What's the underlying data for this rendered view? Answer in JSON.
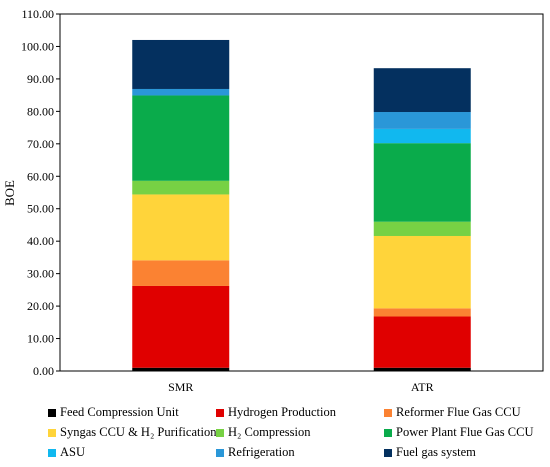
{
  "chart_data": {
    "type": "bar",
    "stacked": true,
    "title": "",
    "xlabel": "",
    "ylabel": "BOE",
    "ylim": [
      0,
      110
    ],
    "yticks": [
      "0.00",
      "10.00",
      "20.00",
      "30.00",
      "40.00",
      "50.00",
      "60.00",
      "70.00",
      "80.00",
      "90.00",
      "100.00",
      "110.00"
    ],
    "categories": [
      "SMR",
      "ATR"
    ],
    "grid": false,
    "legend_position": "bottom",
    "series": [
      {
        "name": "Feed Compression Unit",
        "color": "#000000",
        "values": [
          1.0,
          1.0
        ]
      },
      {
        "name": "Hydrogen Production",
        "color": "#e00000",
        "values": [
          25.2,
          15.8
        ]
      },
      {
        "name": "Reformer Flue Gas CCU",
        "color": "#fb8232",
        "values": [
          7.9,
          2.5
        ]
      },
      {
        "name": "Syngas CCU & H₂ Purification",
        "color": "#ffd43a",
        "values": [
          20.3,
          22.3
        ]
      },
      {
        "name": "H₂ Compression",
        "color": "#77d144",
        "values": [
          4.2,
          4.4
        ]
      },
      {
        "name": "Power Plant Flue Gas CCU",
        "color": "#0aab4b",
        "values": [
          26.3,
          24.2
        ]
      },
      {
        "name": "ASU",
        "color": "#11b8ef",
        "values": [
          0.0,
          4.4
        ]
      },
      {
        "name": "Refrigeration",
        "color": "#2a97d8",
        "values": [
          2.0,
          5.2
        ]
      },
      {
        "name": "Fuel gas system",
        "color": "#04305f",
        "values": [
          15.1,
          13.5
        ]
      }
    ]
  }
}
